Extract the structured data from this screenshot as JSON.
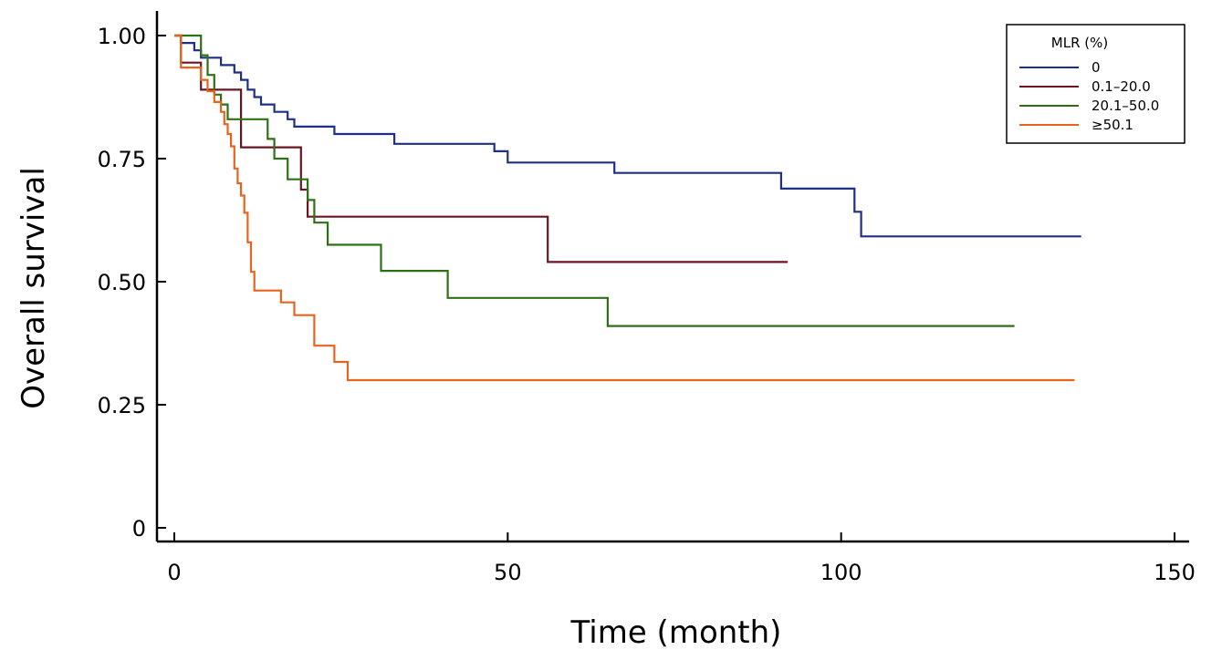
{
  "chart_data": {
    "type": "line",
    "step": true,
    "xlabel": "Time (month)",
    "ylabel": "Overall survival",
    "xlim": [
      0,
      150
    ],
    "ylim": [
      0,
      1
    ],
    "xticks": [
      0,
      50,
      100,
      150
    ],
    "xtick_labels": [
      "0",
      "50",
      "100",
      "150"
    ],
    "yticks": [
      0,
      0.25,
      0.5,
      0.75,
      1.0
    ],
    "ytick_labels": [
      "0",
      "0.25",
      "0.50",
      "0.75",
      "1.00"
    ],
    "grid": false,
    "legend": {
      "title": "MLR (%)",
      "placement": "top-right"
    },
    "series": [
      {
        "name": "0",
        "color": "#1f2f88",
        "points": [
          [
            0,
            1.0
          ],
          [
            1,
            1.0
          ],
          [
            1,
            0.985
          ],
          [
            3,
            0.985
          ],
          [
            3,
            0.97
          ],
          [
            4,
            0.97
          ],
          [
            4,
            0.955
          ],
          [
            7,
            0.955
          ],
          [
            7,
            0.94
          ],
          [
            9,
            0.94
          ],
          [
            9,
            0.925
          ],
          [
            10,
            0.925
          ],
          [
            10,
            0.91
          ],
          [
            11,
            0.91
          ],
          [
            11,
            0.89
          ],
          [
            12,
            0.89
          ],
          [
            12,
            0.875
          ],
          [
            13,
            0.875
          ],
          [
            13,
            0.86
          ],
          [
            15,
            0.86
          ],
          [
            15,
            0.845
          ],
          [
            17,
            0.845
          ],
          [
            17,
            0.83
          ],
          [
            18,
            0.83
          ],
          [
            18,
            0.815
          ],
          [
            24,
            0.815
          ],
          [
            24,
            0.8
          ],
          [
            33,
            0.8
          ],
          [
            33,
            0.78
          ],
          [
            48,
            0.78
          ],
          [
            48,
            0.765
          ],
          [
            50,
            0.765
          ],
          [
            50,
            0.742
          ],
          [
            66,
            0.742
          ],
          [
            66,
            0.721
          ],
          [
            91,
            0.721
          ],
          [
            91,
            0.689
          ],
          [
            102,
            0.689
          ],
          [
            102,
            0.642
          ],
          [
            103,
            0.642
          ],
          [
            103,
            0.592
          ],
          [
            136,
            0.592
          ]
        ]
      },
      {
        "name": "0.1–20.0",
        "color": "#6e1420",
        "points": [
          [
            0,
            1.0
          ],
          [
            1,
            1.0
          ],
          [
            1,
            0.945
          ],
          [
            4,
            0.945
          ],
          [
            4,
            0.89
          ],
          [
            10,
            0.89
          ],
          [
            10,
            0.773
          ],
          [
            19,
            0.773
          ],
          [
            19,
            0.687
          ],
          [
            20,
            0.687
          ],
          [
            20,
            0.632
          ],
          [
            56,
            0.632
          ],
          [
            56,
            0.54
          ],
          [
            92,
            0.54
          ]
        ]
      },
      {
        "name": "20.1–50.0",
        "color": "#2e7016",
        "points": [
          [
            0,
            1.0
          ],
          [
            4,
            1.0
          ],
          [
            4,
            0.96
          ],
          [
            5,
            0.96
          ],
          [
            5,
            0.92
          ],
          [
            6,
            0.92
          ],
          [
            6,
            0.88
          ],
          [
            7,
            0.88
          ],
          [
            7,
            0.86
          ],
          [
            8,
            0.86
          ],
          [
            8,
            0.83
          ],
          [
            14,
            0.83
          ],
          [
            14,
            0.79
          ],
          [
            15,
            0.79
          ],
          [
            15,
            0.75
          ],
          [
            17,
            0.75
          ],
          [
            17,
            0.708
          ],
          [
            20,
            0.708
          ],
          [
            20,
            0.666
          ],
          [
            21,
            0.666
          ],
          [
            21,
            0.62
          ],
          [
            23,
            0.62
          ],
          [
            23,
            0.575
          ],
          [
            31,
            0.575
          ],
          [
            31,
            0.522
          ],
          [
            41,
            0.522
          ],
          [
            41,
            0.467
          ],
          [
            65,
            0.467
          ],
          [
            65,
            0.41
          ],
          [
            126,
            0.41
          ]
        ]
      },
      {
        "name": "≥50.1",
        "color": "#e8641c",
        "points": [
          [
            0,
            1.0
          ],
          [
            1,
            1.0
          ],
          [
            1,
            0.935
          ],
          [
            4,
            0.935
          ],
          [
            4,
            0.91
          ],
          [
            5,
            0.91
          ],
          [
            5,
            0.887
          ],
          [
            6,
            0.887
          ],
          [
            6,
            0.865
          ],
          [
            7,
            0.865
          ],
          [
            7,
            0.845
          ],
          [
            7.5,
            0.845
          ],
          [
            7.5,
            0.82
          ],
          [
            8,
            0.82
          ],
          [
            8,
            0.8
          ],
          [
            8.5,
            0.8
          ],
          [
            8.5,
            0.775
          ],
          [
            9,
            0.775
          ],
          [
            9,
            0.73
          ],
          [
            9.5,
            0.73
          ],
          [
            9.5,
            0.7
          ],
          [
            10,
            0.7
          ],
          [
            10,
            0.675
          ],
          [
            10.5,
            0.675
          ],
          [
            10.5,
            0.64
          ],
          [
            11,
            0.64
          ],
          [
            11,
            0.58
          ],
          [
            11.5,
            0.58
          ],
          [
            11.5,
            0.52
          ],
          [
            12,
            0.52
          ],
          [
            12,
            0.482
          ],
          [
            16,
            0.482
          ],
          [
            16,
            0.458
          ],
          [
            18,
            0.458
          ],
          [
            18,
            0.432
          ],
          [
            21,
            0.432
          ],
          [
            21,
            0.37
          ],
          [
            24,
            0.37
          ],
          [
            24,
            0.337
          ],
          [
            26,
            0.337
          ],
          [
            26,
            0.3
          ],
          [
            135,
            0.3
          ]
        ]
      }
    ]
  }
}
